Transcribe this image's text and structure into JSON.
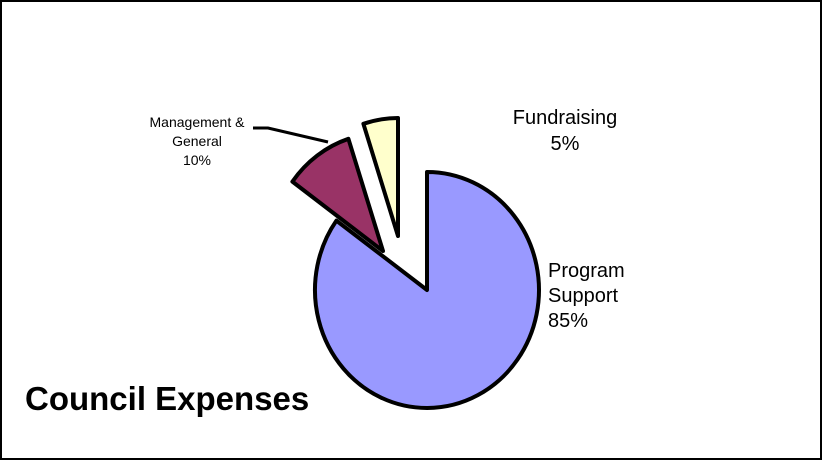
{
  "chart_data": {
    "type": "pie",
    "title": "Council Expenses",
    "exploded": true,
    "slices": [
      {
        "name": "Program Support",
        "value": 85,
        "label_lines": [
          "Program",
          "Support",
          "85%"
        ],
        "color": "#9999ff"
      },
      {
        "name": "Management & General",
        "value": 10,
        "label_lines": [
          "Management &",
          "General",
          "10%"
        ],
        "color": "#993366"
      },
      {
        "name": "Fundraising",
        "value": 5,
        "label_lines": [
          "Fundraising",
          "5%"
        ],
        "color": "#ffffcc"
      }
    ]
  }
}
